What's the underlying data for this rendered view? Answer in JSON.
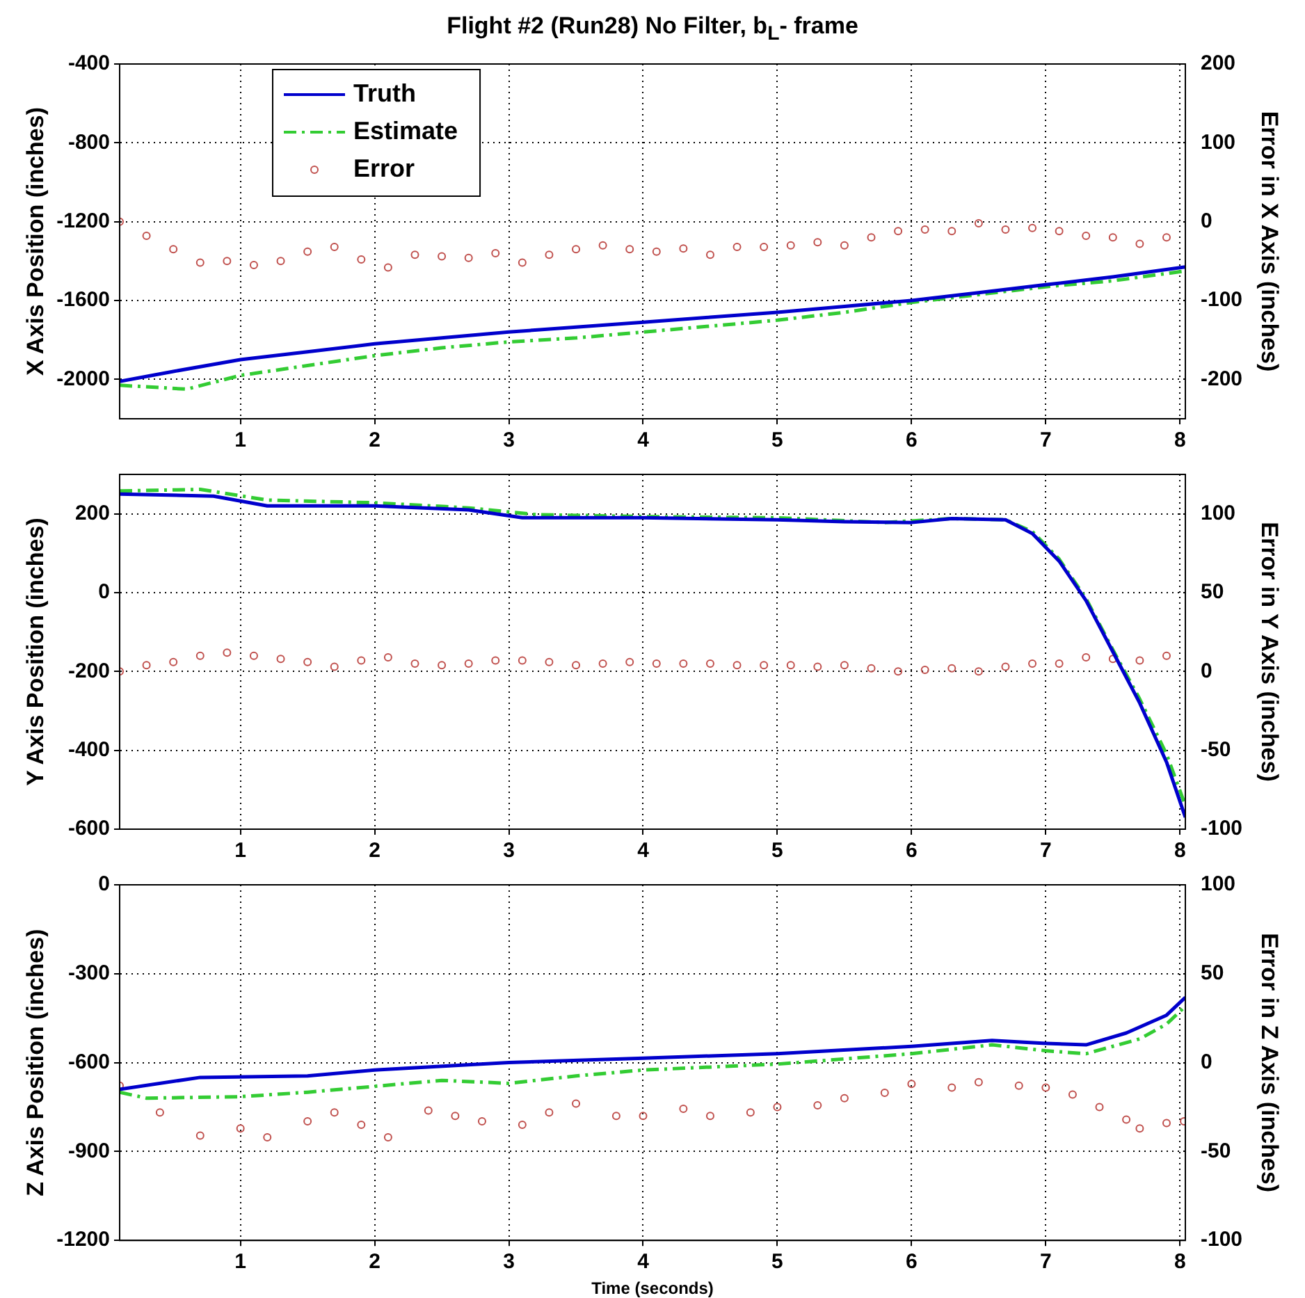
{
  "chart_data": [
    {
      "type": "line",
      "title": "Flight #2 (Run28) No Filter, b$_{L}$- frame",
      "ylabel": "X Axis Position (inches)",
      "y2label": "Error in X Axis (inches)",
      "xlim": [
        0.1,
        8.04
      ],
      "xticks": [
        1,
        2,
        3,
        4,
        5,
        6,
        7,
        8
      ],
      "ylim": [
        -2200,
        -400
      ],
      "yticks": [
        -2000,
        -1600,
        -1200,
        -800,
        -400
      ],
      "y2lim": [
        -250,
        200
      ],
      "y2ticks": [
        -200,
        -100,
        0,
        100,
        200
      ],
      "grid": true,
      "legend": "top left",
      "series": [
        {
          "name": "Truth",
          "type": "line",
          "color": "#0000cc",
          "line_style": "solid",
          "marker": "none",
          "x": [
            0.1,
            0.5,
            1,
            1.5,
            2,
            2.5,
            3,
            3.5,
            4,
            4.5,
            5,
            5.5,
            6,
            6.5,
            7,
            7.5,
            8.04
          ],
          "values": [
            -2010,
            -1960,
            -1900,
            -1860,
            -1820,
            -1790,
            -1760,
            -1735,
            -1710,
            -1685,
            -1660,
            -1630,
            -1600,
            -1560,
            -1520,
            -1480,
            -1430
          ]
        },
        {
          "name": "Estimate",
          "type": "line",
          "color": "#33cc33",
          "line_style": "dashed",
          "marker": "none",
          "x": [
            0.1,
            0.6,
            1,
            1.5,
            2,
            2.5,
            3,
            3.5,
            4,
            4.5,
            5,
            5.5,
            6,
            6.5,
            7,
            7.5,
            8.04
          ],
          "values": [
            -2030,
            -2050,
            -1980,
            -1930,
            -1880,
            -1840,
            -1810,
            -1790,
            -1760,
            -1730,
            -1700,
            -1660,
            -1610,
            -1570,
            -1530,
            -1500,
            -1450
          ]
        },
        {
          "name": "Error",
          "type": "scatter",
          "axis": "y2",
          "color": "#c0504d",
          "marker": "circle",
          "x": [
            0.1,
            0.3,
            0.5,
            0.7,
            0.9,
            1.1,
            1.3,
            1.5,
            1.7,
            1.9,
            2.1,
            2.3,
            2.5,
            2.7,
            2.9,
            3.1,
            3.3,
            3.5,
            3.7,
            3.9,
            4.1,
            4.3,
            4.5,
            4.7,
            4.9,
            5.1,
            5.3,
            5.5,
            5.7,
            5.9,
            6.1,
            6.3,
            6.5,
            6.7,
            6.9,
            7.1,
            7.3,
            7.5,
            7.7,
            7.9
          ],
          "values": [
            0,
            -18,
            -35,
            -52,
            -50,
            -55,
            -50,
            -38,
            -32,
            -48,
            -58,
            -42,
            -44,
            -46,
            -40,
            -52,
            -42,
            -35,
            -30,
            -35,
            -38,
            -34,
            -42,
            -32,
            -32,
            -30,
            -26,
            -30,
            -20,
            -12,
            -10,
            -12,
            -2,
            -10,
            -8,
            -12,
            -18,
            -20,
            -28,
            -20
          ]
        }
      ]
    },
    {
      "type": "line",
      "ylabel": "Y Axis Position (inches)",
      "y2label": "Error in Y Axis (inches)",
      "xlim": [
        0.1,
        8.04
      ],
      "xticks": [
        1,
        2,
        3,
        4,
        5,
        6,
        7,
        8
      ],
      "ylim": [
        -600,
        300
      ],
      "yticks": [
        -600,
        -400,
        -200,
        0,
        200
      ],
      "y2lim": [
        -100,
        125
      ],
      "y2ticks": [
        -100,
        -50,
        0,
        50,
        100
      ],
      "grid": true,
      "series": [
        {
          "type": "line",
          "color": "#0000cc",
          "line_style": "solid",
          "marker": "none",
          "x": [
            0.1,
            0.8,
            1.2,
            2,
            2.7,
            3.1,
            4,
            5,
            5.5,
            6,
            6.3,
            6.7,
            6.9,
            7.1,
            7.3,
            7.5,
            7.7,
            7.9,
            8.04
          ],
          "values": [
            250,
            245,
            220,
            220,
            210,
            190,
            190,
            185,
            180,
            178,
            188,
            185,
            150,
            80,
            -20,
            -150,
            -280,
            -430,
            -570
          ]
        },
        {
          "type": "line",
          "color": "#33cc33",
          "line_style": "dashed",
          "marker": "none",
          "x": [
            0.1,
            0.7,
            1.2,
            2,
            2.7,
            3.2,
            4,
            5,
            5.8,
            6.3,
            6.7,
            6.9,
            7.1,
            7.3,
            7.5,
            7.7,
            7.9,
            8.04
          ],
          "values": [
            258,
            262,
            235,
            228,
            215,
            198,
            193,
            190,
            178,
            188,
            185,
            155,
            85,
            -15,
            -145,
            -270,
            -410,
            -540
          ]
        },
        {
          "type": "scatter",
          "axis": "y2",
          "color": "#c0504d",
          "marker": "circle",
          "x": [
            0.1,
            0.3,
            0.5,
            0.7,
            0.9,
            1.1,
            1.3,
            1.5,
            1.7,
            1.9,
            2.1,
            2.3,
            2.5,
            2.7,
            2.9,
            3.1,
            3.3,
            3.5,
            3.7,
            3.9,
            4.1,
            4.3,
            4.5,
            4.7,
            4.9,
            5.1,
            5.3,
            5.5,
            5.7,
            5.9,
            6.1,
            6.3,
            6.5,
            6.7,
            6.9,
            7.1,
            7.3,
            7.5,
            7.7,
            7.9
          ],
          "values": [
            0,
            4,
            6,
            10,
            12,
            10,
            8,
            6,
            3,
            7,
            9,
            5,
            4,
            5,
            7,
            7,
            6,
            4,
            5,
            6,
            5,
            5,
            5,
            4,
            4,
            4,
            3,
            4,
            2,
            0,
            1,
            2,
            0,
            3,
            5,
            5,
            9,
            8,
            7,
            10
          ]
        }
      ]
    },
    {
      "type": "line",
      "xlabel": "Time (seconds)",
      "ylabel": "Z Axis Position (inches)",
      "y2label": "Error in Z Axis (inches)",
      "xlim": [
        0.1,
        8.04
      ],
      "xticks": [
        1,
        2,
        3,
        4,
        5,
        6,
        7,
        8
      ],
      "ylim": [
        -1200,
        0
      ],
      "yticks": [
        -1200,
        -900,
        -600,
        -300,
        0
      ],
      "y2lim": [
        -100,
        100
      ],
      "y2ticks": [
        -100,
        -50,
        0,
        50,
        100
      ],
      "grid": true,
      "series": [
        {
          "type": "line",
          "color": "#0000cc",
          "line_style": "solid",
          "marker": "none",
          "x": [
            0.1,
            0.7,
            1.5,
            2,
            2.6,
            3,
            4,
            5,
            6,
            6.6,
            7,
            7.3,
            7.6,
            7.9,
            8.04
          ],
          "values": [
            -690,
            -650,
            -645,
            -625,
            -610,
            -600,
            -585,
            -570,
            -545,
            -525,
            -535,
            -540,
            -500,
            -440,
            -380
          ]
        },
        {
          "type": "line",
          "color": "#33cc33",
          "line_style": "dashed",
          "marker": "none",
          "x": [
            0.1,
            0.3,
            1,
            1.5,
            2,
            2.5,
            3,
            3.5,
            4,
            5,
            6,
            6.6,
            7,
            7.3,
            7.7,
            7.9,
            8.04
          ],
          "values": [
            -700,
            -720,
            -715,
            -700,
            -680,
            -660,
            -670,
            -645,
            -625,
            -605,
            -570,
            -540,
            -560,
            -570,
            -520,
            -470,
            -410
          ]
        },
        {
          "type": "scatter",
          "axis": "y2",
          "color": "#c0504d",
          "marker": "circle",
          "x": [
            0.1,
            0.4,
            0.7,
            1,
            1.2,
            1.5,
            1.7,
            1.9,
            2.1,
            2.4,
            2.6,
            2.8,
            3.1,
            3.3,
            3.5,
            3.8,
            4,
            4.3,
            4.5,
            4.8,
            5,
            5.3,
            5.5,
            5.8,
            6,
            6.3,
            6.5,
            6.8,
            7,
            7.2,
            7.4,
            7.6,
            7.7,
            7.9,
            8.03
          ],
          "values": [
            -13,
            -28,
            -41,
            -37,
            -42,
            -33,
            -28,
            -35,
            -42,
            -27,
            -30,
            -33,
            -35,
            -28,
            -23,
            -30,
            -30,
            -26,
            -30,
            -28,
            -25,
            -24,
            -20,
            -17,
            -12,
            -14,
            -11,
            -13,
            -14,
            -18,
            -25,
            -32,
            -37,
            -34,
            -33
          ]
        }
      ]
    }
  ]
}
